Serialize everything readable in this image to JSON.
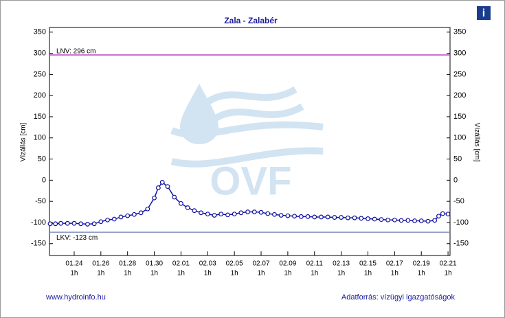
{
  "chart_data": {
    "type": "line",
    "title": "Zala - Zalabér",
    "ylabel": "Vízállás [cm]",
    "y2label": "Vízállás [cm]",
    "ylim": [
      -178,
      361
    ],
    "yticks": [
      -150,
      -100,
      -50,
      0,
      50,
      100,
      150,
      200,
      250,
      300,
      350
    ],
    "y2lim": [
      -178,
      361
    ],
    "y2ticks": [
      -150,
      -100,
      -50,
      0,
      50,
      100,
      150,
      200,
      250,
      300,
      350
    ],
    "xlim": [
      22.15,
      52.15
    ],
    "xticks": [
      {
        "value": 24,
        "label": "01.24"
      },
      {
        "value": 26,
        "label": "01.26"
      },
      {
        "value": 28,
        "label": "01.28"
      },
      {
        "value": 30,
        "label": "01.30"
      },
      {
        "value": 32,
        "label": "02.01"
      },
      {
        "value": 34,
        "label": "02.03"
      },
      {
        "value": 36,
        "label": "02.05"
      },
      {
        "value": 38,
        "label": "02.07"
      },
      {
        "value": 40,
        "label": "02.09"
      },
      {
        "value": 42,
        "label": "02.11"
      },
      {
        "value": 44,
        "label": "02.13"
      },
      {
        "value": 46,
        "label": "02.15"
      },
      {
        "value": 48,
        "label": "02.17"
      },
      {
        "value": 50,
        "label": "02.19"
      },
      {
        "value": 52,
        "label": "02.21"
      }
    ],
    "xtick_hour_labels": [
      "1h",
      "1h",
      "1h",
      "1h",
      "1h",
      "1h",
      "1h",
      "1h",
      "1h",
      "1h",
      "1h",
      "1h",
      "1h",
      "1h",
      "1h"
    ],
    "grid": false,
    "thresholds": [
      {
        "label": "LNV: 296 cm",
        "value": 296,
        "color": "#c040c0"
      },
      {
        "label": "LKV: -123 cm",
        "value": -123,
        "color": "#8090c0"
      }
    ],
    "series": [
      {
        "color": "#1010a0",
        "x": [
          22.2,
          22.6,
          23,
          23.5,
          24,
          24.5,
          25,
          25.5,
          26,
          26.5,
          27,
          27.5,
          28,
          28.5,
          29,
          29.5,
          30,
          30.3,
          30.6,
          31,
          31.5,
          32,
          32.5,
          33,
          33.5,
          34,
          34.5,
          35,
          35.5,
          36,
          36.5,
          37,
          37.5,
          38,
          38.5,
          39,
          39.5,
          40,
          40.5,
          41,
          41.5,
          42,
          42.5,
          43,
          43.5,
          44,
          44.5,
          45,
          45.5,
          46,
          46.5,
          47,
          47.5,
          48,
          48.5,
          49,
          49.5,
          50,
          50.5,
          51,
          51.3,
          51.6,
          52
        ],
        "values": [
          -103,
          -103,
          -102,
          -102,
          -102,
          -103,
          -104,
          -103,
          -98,
          -94,
          -92,
          -87,
          -84,
          -81,
          -77,
          -68,
          -42,
          -18,
          -5,
          -15,
          -40,
          -55,
          -65,
          -72,
          -77,
          -80,
          -83,
          -80,
          -82,
          -80,
          -77,
          -75,
          -75,
          -76,
          -79,
          -81,
          -83,
          -84,
          -85,
          -86,
          -86,
          -87,
          -87,
          -87,
          -88,
          -88,
          -89,
          -89,
          -90,
          -91,
          -92,
          -93,
          -94,
          -94,
          -95,
          -95,
          -96,
          -96,
          -97,
          -95,
          -85,
          -79,
          -80
        ]
      }
    ],
    "watermark": "OVF",
    "footer_left": "www.hydroinfo.hu",
    "footer_right": "Adatforrás: vízügyi igazgatóságok",
    "info_icon": "i"
  }
}
